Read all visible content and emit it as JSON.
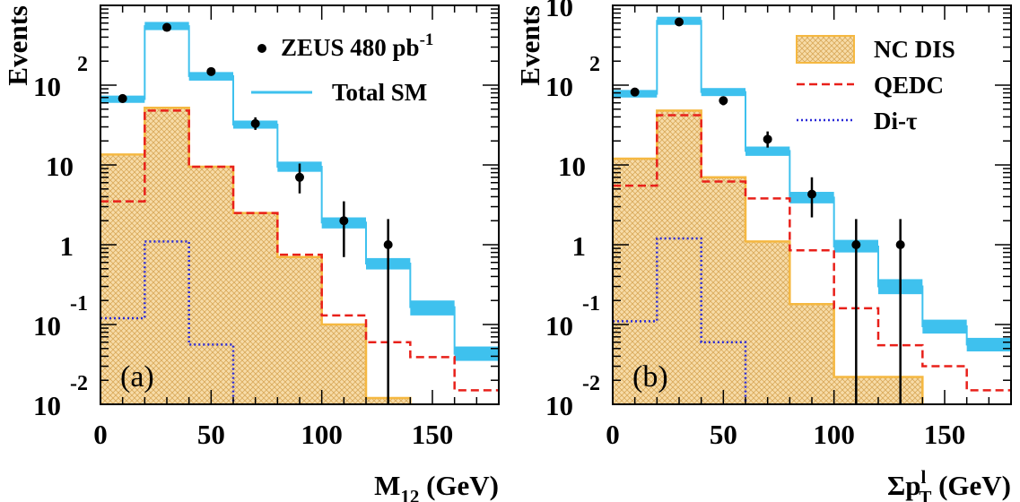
{
  "colors": {
    "data": "#000000",
    "total_sm": "#3ec1ee",
    "nc_dis_fill": "#f7d9a3",
    "nc_dis_line": "#f5b841",
    "qedc": "#e8201a",
    "di_tau": "#2a2ad8"
  },
  "legend_panel_a": [
    {
      "key": "data",
      "label": "ZEUS 480 pb",
      "sup": "-1",
      "marker": "point"
    },
    {
      "key": "total_sm",
      "label": "Total SM",
      "sup": "",
      "marker": "band"
    }
  ],
  "legend_panel_b": [
    {
      "key": "nc_dis",
      "label": "NC DIS",
      "marker": "hatched-box"
    },
    {
      "key": "qedc",
      "label": "QEDC",
      "marker": "dashed-line"
    },
    {
      "key": "di_tau",
      "label": "Di-τ",
      "marker": "dotted-line"
    }
  ],
  "chart_data": [
    {
      "type": "histogram",
      "panel_label": "(a)",
      "xlabel": "M",
      "xlabel_sub": "12",
      "xlabel_unit": "(GeV)",
      "ylabel": "Events",
      "yscale": "log",
      "xlim": [
        0,
        180
      ],
      "ylim": [
        0.01,
        1000
      ],
      "x_ticks": [
        "0",
        "50",
        "100",
        "150"
      ],
      "y_ticks": [
        {
          "value": 0.01,
          "base": "10",
          "exp": "-2"
        },
        {
          "value": 0.1,
          "base": "10",
          "exp": "-1"
        },
        {
          "value": 1,
          "base": "1",
          "exp": ""
        },
        {
          "value": 10,
          "base": "10",
          "exp": ""
        },
        {
          "value": 100,
          "base": "10",
          "exp": "2"
        }
      ],
      "bin_edges": [
        0,
        20,
        40,
        60,
        80,
        100,
        120,
        140,
        160,
        180
      ],
      "series": [
        {
          "name": "Total SM",
          "key": "total_sm",
          "style": "band",
          "values": [
            67,
            550,
            130,
            32,
            9.5,
            1.9,
            0.58,
            0.165,
            0.043
          ],
          "band_low": [
            60,
            490,
            114,
            28.5,
            8.2,
            1.6,
            0.49,
            0.13,
            0.035
          ],
          "band_high": [
            74,
            620,
            146,
            36,
            11,
            2.2,
            0.68,
            0.2,
            0.053
          ]
        },
        {
          "name": "NC DIS",
          "key": "nc_dis",
          "style": "hatched",
          "values": [
            13.5,
            52,
            9.5,
            2.5,
            0.7,
            0.1,
            0.012,
            0,
            0
          ]
        },
        {
          "name": "QEDC",
          "key": "qedc",
          "style": "dashed",
          "values": [
            3.5,
            48,
            9.5,
            2.5,
            0.75,
            0.13,
            0.06,
            0.039,
            0.015
          ]
        },
        {
          "name": "Di-τ",
          "key": "di_tau",
          "style": "dotted",
          "values": [
            0.12,
            1.1,
            0.056,
            0,
            0,
            0,
            0,
            0,
            0
          ]
        },
        {
          "name": "ZEUS 480 pb-1",
          "key": "data",
          "style": "points",
          "x": [
            10,
            30,
            50,
            70,
            90,
            110,
            130
          ],
          "y": [
            68,
            530,
            148,
            33,
            7,
            2,
            1
          ],
          "err_low": [
            8,
            23,
            12,
            5.5,
            2.6,
            1.3,
            0.99
          ],
          "err_high": [
            8,
            23,
            12,
            6.5,
            3.4,
            1.5,
            1.1
          ]
        }
      ]
    },
    {
      "type": "histogram",
      "panel_label": "(b)",
      "xlabel": "Σp",
      "xlabel_sup": "l",
      "xlabel_sub": "T",
      "xlabel_unit": "(GeV)",
      "ylabel": "Events",
      "yscale": "log",
      "xlim": [
        0,
        180
      ],
      "ylim": [
        0.01,
        1000
      ],
      "x_ticks": [
        "0",
        "50",
        "100",
        "150"
      ],
      "y_ticks": [
        {
          "value": 0.01,
          "base": "10",
          "exp": "-2"
        },
        {
          "value": 0.1,
          "base": "10",
          "exp": "-1"
        },
        {
          "value": 1,
          "base": "1",
          "exp": ""
        },
        {
          "value": 10,
          "base": "10",
          "exp": ""
        },
        {
          "value": 100,
          "base": "10",
          "exp": "2"
        },
        {
          "value": 1000,
          "base": "10",
          "exp": "3"
        }
      ],
      "bin_edges": [
        0,
        20,
        40,
        60,
        80,
        100,
        120,
        140,
        160,
        180
      ],
      "series": [
        {
          "name": "Total SM",
          "key": "total_sm",
          "style": "band",
          "values": [
            78,
            640,
            82,
            15,
            3.9,
            0.95,
            0.3,
            0.095,
            0.056
          ],
          "band_low": [
            70,
            570,
            73,
            13,
            3.3,
            0.8,
            0.24,
            0.077,
            0.046
          ],
          "band_high": [
            87,
            720,
            92,
            17,
            4.6,
            1.15,
            0.37,
            0.115,
            0.068
          ]
        },
        {
          "name": "NC DIS",
          "key": "nc_dis",
          "style": "hatched",
          "values": [
            12,
            48,
            7,
            1.1,
            0.18,
            0.022,
            0.022,
            0,
            0
          ]
        },
        {
          "name": "QEDC",
          "key": "qedc",
          "style": "dashed",
          "values": [
            5.5,
            42,
            6.2,
            3.8,
            0.85,
            0.16,
            0.055,
            0.03,
            0.015
          ]
        },
        {
          "name": "Di-τ",
          "key": "di_tau",
          "style": "dotted",
          "values": [
            0.11,
            1.2,
            0.06,
            0,
            0,
            0,
            0,
            0,
            0
          ]
        },
        {
          "name": "ZEUS 480 pb-1",
          "key": "data",
          "style": "points",
          "x": [
            10,
            30,
            50,
            70,
            90,
            110,
            130
          ],
          "y": [
            82,
            620,
            64,
            21,
            4.3,
            1,
            1
          ],
          "err_low": [
            9,
            25,
            8,
            4.5,
            2.1,
            0.99,
            0.99
          ],
          "err_high": [
            9,
            25,
            8,
            5.3,
            2.7,
            1.1,
            1.1
          ]
        }
      ]
    }
  ]
}
